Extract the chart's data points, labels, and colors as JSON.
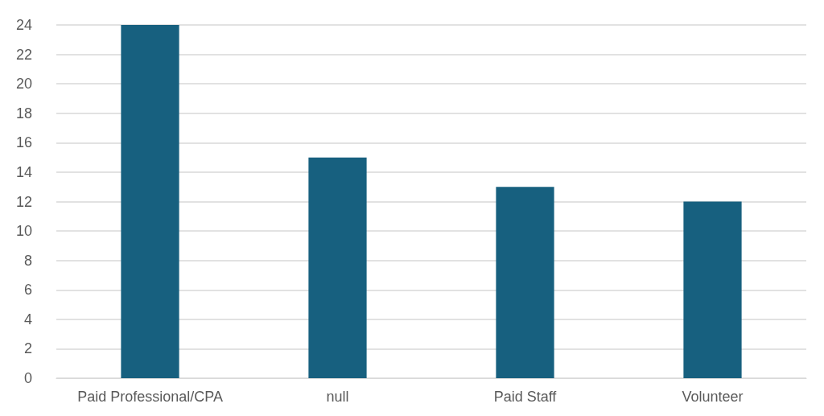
{
  "chart_data": {
    "type": "bar",
    "categories": [
      "Paid Professional/CPA",
      "null",
      "Paid Staff",
      "Volunteer"
    ],
    "values": [
      24,
      15,
      13,
      12
    ],
    "color": "#17607f",
    "ylim": [
      0,
      24
    ],
    "yticks": [
      0,
      2,
      4,
      6,
      8,
      10,
      12,
      14,
      16,
      18,
      20,
      22,
      24
    ],
    "grid": "y"
  }
}
